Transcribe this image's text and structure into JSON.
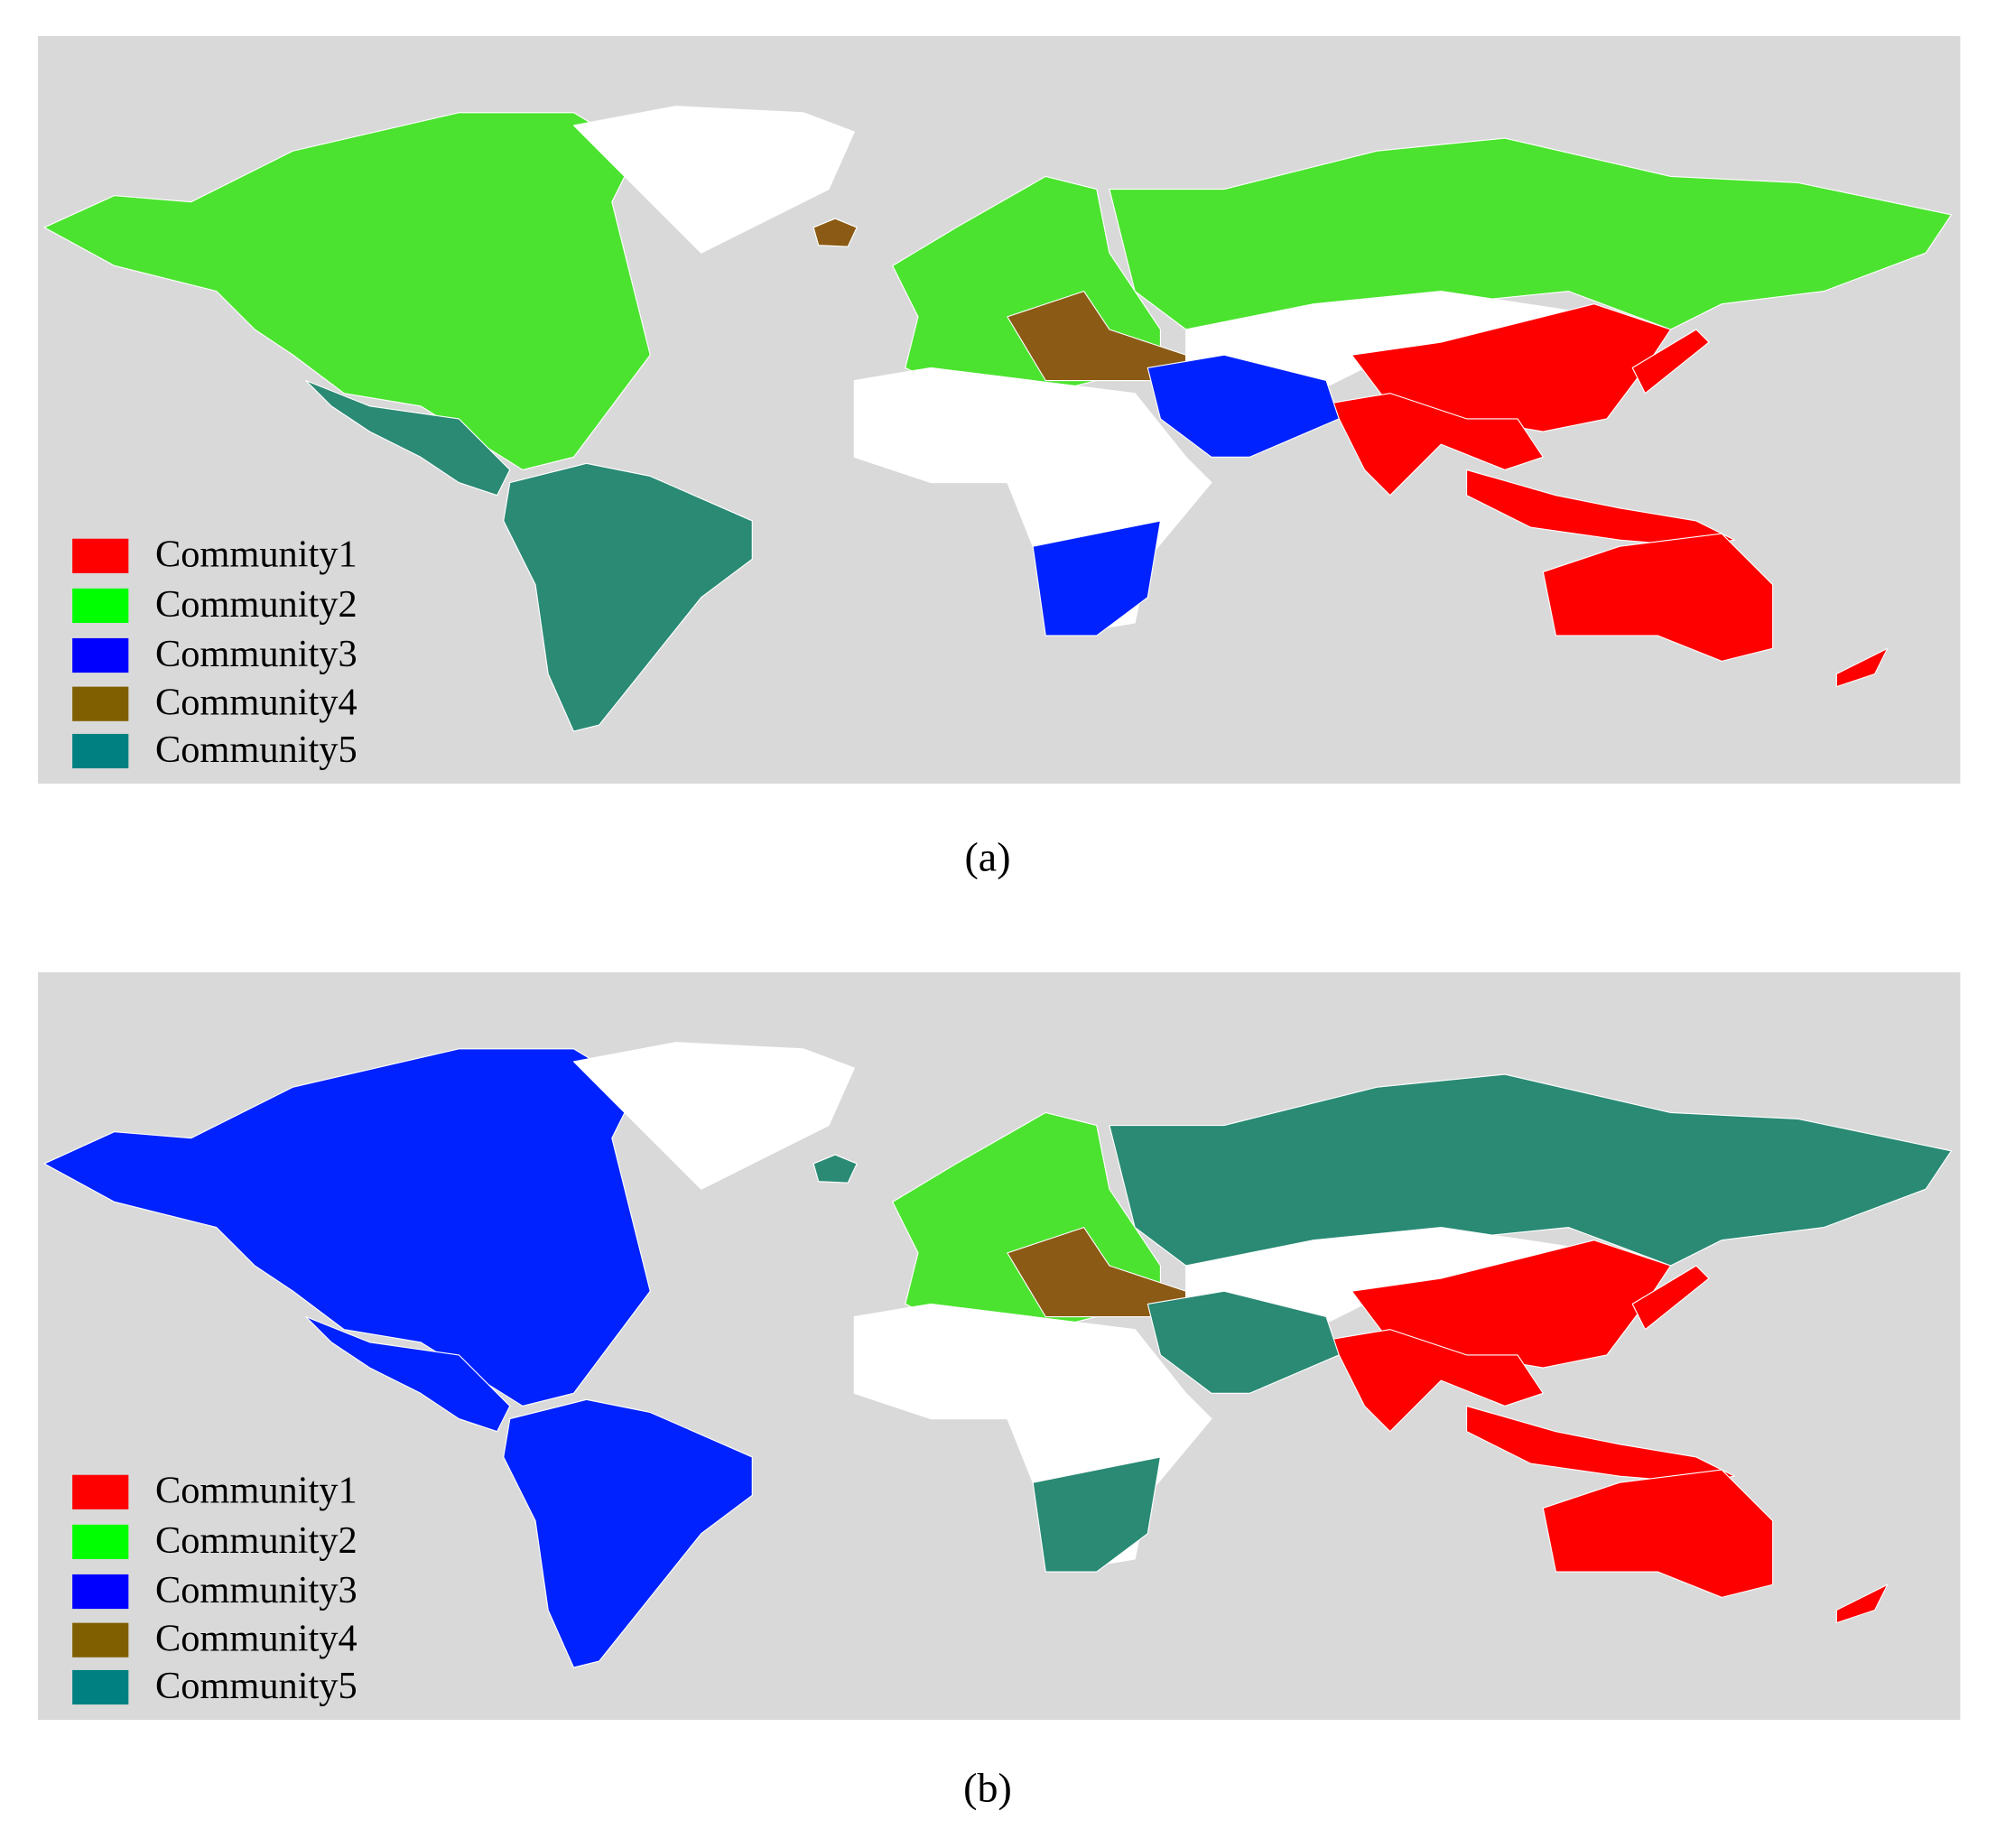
{
  "panels": [
    {
      "caption": "(a)",
      "legend": [
        {
          "label": "Community1",
          "color": "#ff0000"
        },
        {
          "label": "Community2",
          "color": "#00ff00"
        },
        {
          "label": "Community3",
          "color": "#0000ff"
        },
        {
          "label": "Community4",
          "color": "#7f5f00"
        },
        {
          "label": "Community5",
          "color": "#008080"
        }
      ]
    },
    {
      "caption": "(b)",
      "legend": [
        {
          "label": "Community1",
          "color": "#ff0000"
        },
        {
          "label": "Community2",
          "color": "#00ff00"
        },
        {
          "label": "Community3",
          "color": "#0000ff"
        },
        {
          "label": "Community4",
          "color": "#7f5f00"
        },
        {
          "label": "Community5",
          "color": "#008080"
        }
      ]
    }
  ]
}
